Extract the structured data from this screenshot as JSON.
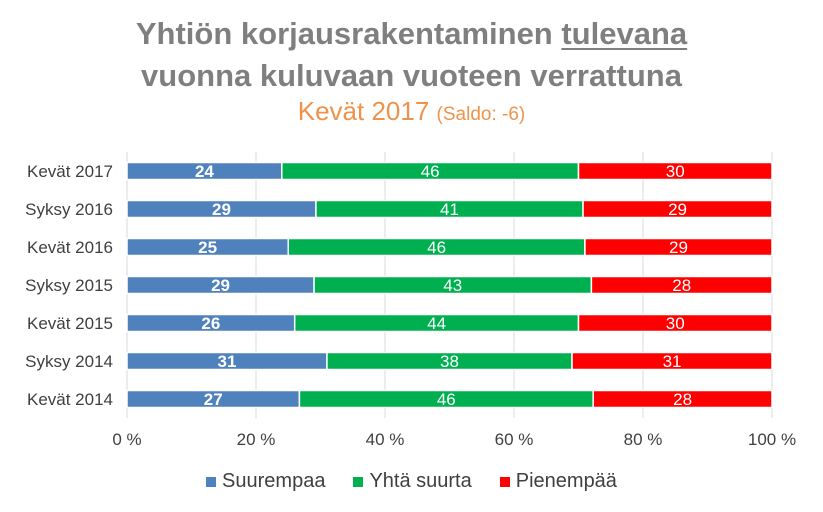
{
  "title": {
    "line1_pre": "Yhtiön korjausrakentaminen ",
    "line1_underlined": "tulevana",
    "line2": "vuonna kuluvaan vuoteen verrattuna",
    "subtitle_main": "Kevät 2017",
    "subtitle_small": "(Saldo: -6)"
  },
  "colors": {
    "suurempaa": "#4f81bd",
    "yhta_suurta": "#00b050",
    "pienempaa": "#ff0000",
    "title": "#7f7f7f",
    "subtitle": "#f0934a"
  },
  "chart_data": {
    "type": "bar",
    "orientation": "horizontal",
    "stacked": "percent",
    "categories": [
      "Kevät 2017",
      "Syksy 2016",
      "Kevät 2016",
      "Syksy 2015",
      "Kevät 2015",
      "Syksy 2014",
      "Kevät 2014"
    ],
    "series": [
      {
        "name": "Suurempaa",
        "color": "#4f81bd",
        "values": [
          24,
          29,
          25,
          29,
          26,
          31,
          27
        ]
      },
      {
        "name": "Yhtä suurta",
        "color": "#00b050",
        "values": [
          46,
          41,
          46,
          43,
          44,
          38,
          46
        ]
      },
      {
        "name": "Pienempää",
        "color": "#ff0000",
        "values": [
          30,
          29,
          29,
          28,
          30,
          31,
          28
        ]
      }
    ],
    "xlim": [
      0,
      100
    ],
    "xticks": [
      "0 %",
      "20 %",
      "40 %",
      "60 %",
      "80 %",
      "100 %"
    ],
    "grid": true,
    "legend": "bottom"
  }
}
